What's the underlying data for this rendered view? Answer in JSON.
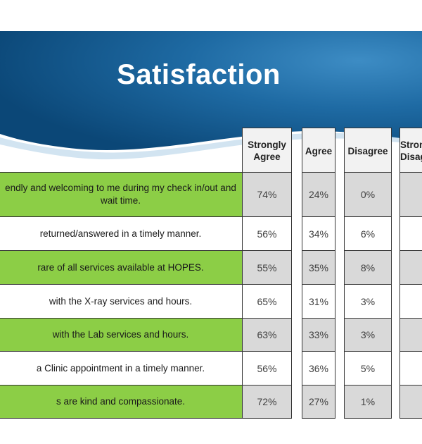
{
  "title": "Satisfaction",
  "columns": [
    "Strongly\nAgree",
    "Agree",
    "Disagree",
    "Strongly\nDisagree"
  ],
  "rows": [
    {
      "question": "...endly and welcoming to me during my check in/out and wait time.",
      "line1": "endly and welcoming to me during my check in/out and",
      "line2": "wait time.",
      "values": [
        "74%",
        "24%",
        "0%",
        ""
      ]
    },
    {
      "question": "returned/answered  in a timely manner.",
      "line1": "returned/answered  in a timely manner.",
      "line2": "",
      "values": [
        "56%",
        "34%",
        "6%",
        ""
      ]
    },
    {
      "question": "rare of all services available at HOPES.",
      "line1": "rare of all services available at HOPES.",
      "line2": "",
      "values": [
        "55%",
        "35%",
        "8%",
        ""
      ]
    },
    {
      "question": "with the X-ray services and hours.",
      "line1": "with the X-ray services and hours.",
      "line2": "",
      "values": [
        "65%",
        "31%",
        "3%",
        ""
      ]
    },
    {
      "question": "with the Lab services and hours.",
      "line1": "with the Lab services and hours.",
      "line2": "",
      "values": [
        "63%",
        "33%",
        "3%",
        ""
      ]
    },
    {
      "question": "a Clinic appointment  in a timely manner.",
      "line1": "a Clinic appointment  in a timely manner.",
      "line2": "",
      "values": [
        "56%",
        "36%",
        "5%",
        ""
      ]
    },
    {
      "question": "s are kind and compassionate.",
      "line1": "s are kind and compassionate.",
      "line2": "",
      "values": [
        "72%",
        "27%",
        "1%",
        ""
      ]
    }
  ],
  "colors": {
    "banner_dark": "#0d4f7e",
    "banner_light": "#2f7fb8",
    "row_green": "#8cce46",
    "cell_grey": "#d9d9d9"
  }
}
